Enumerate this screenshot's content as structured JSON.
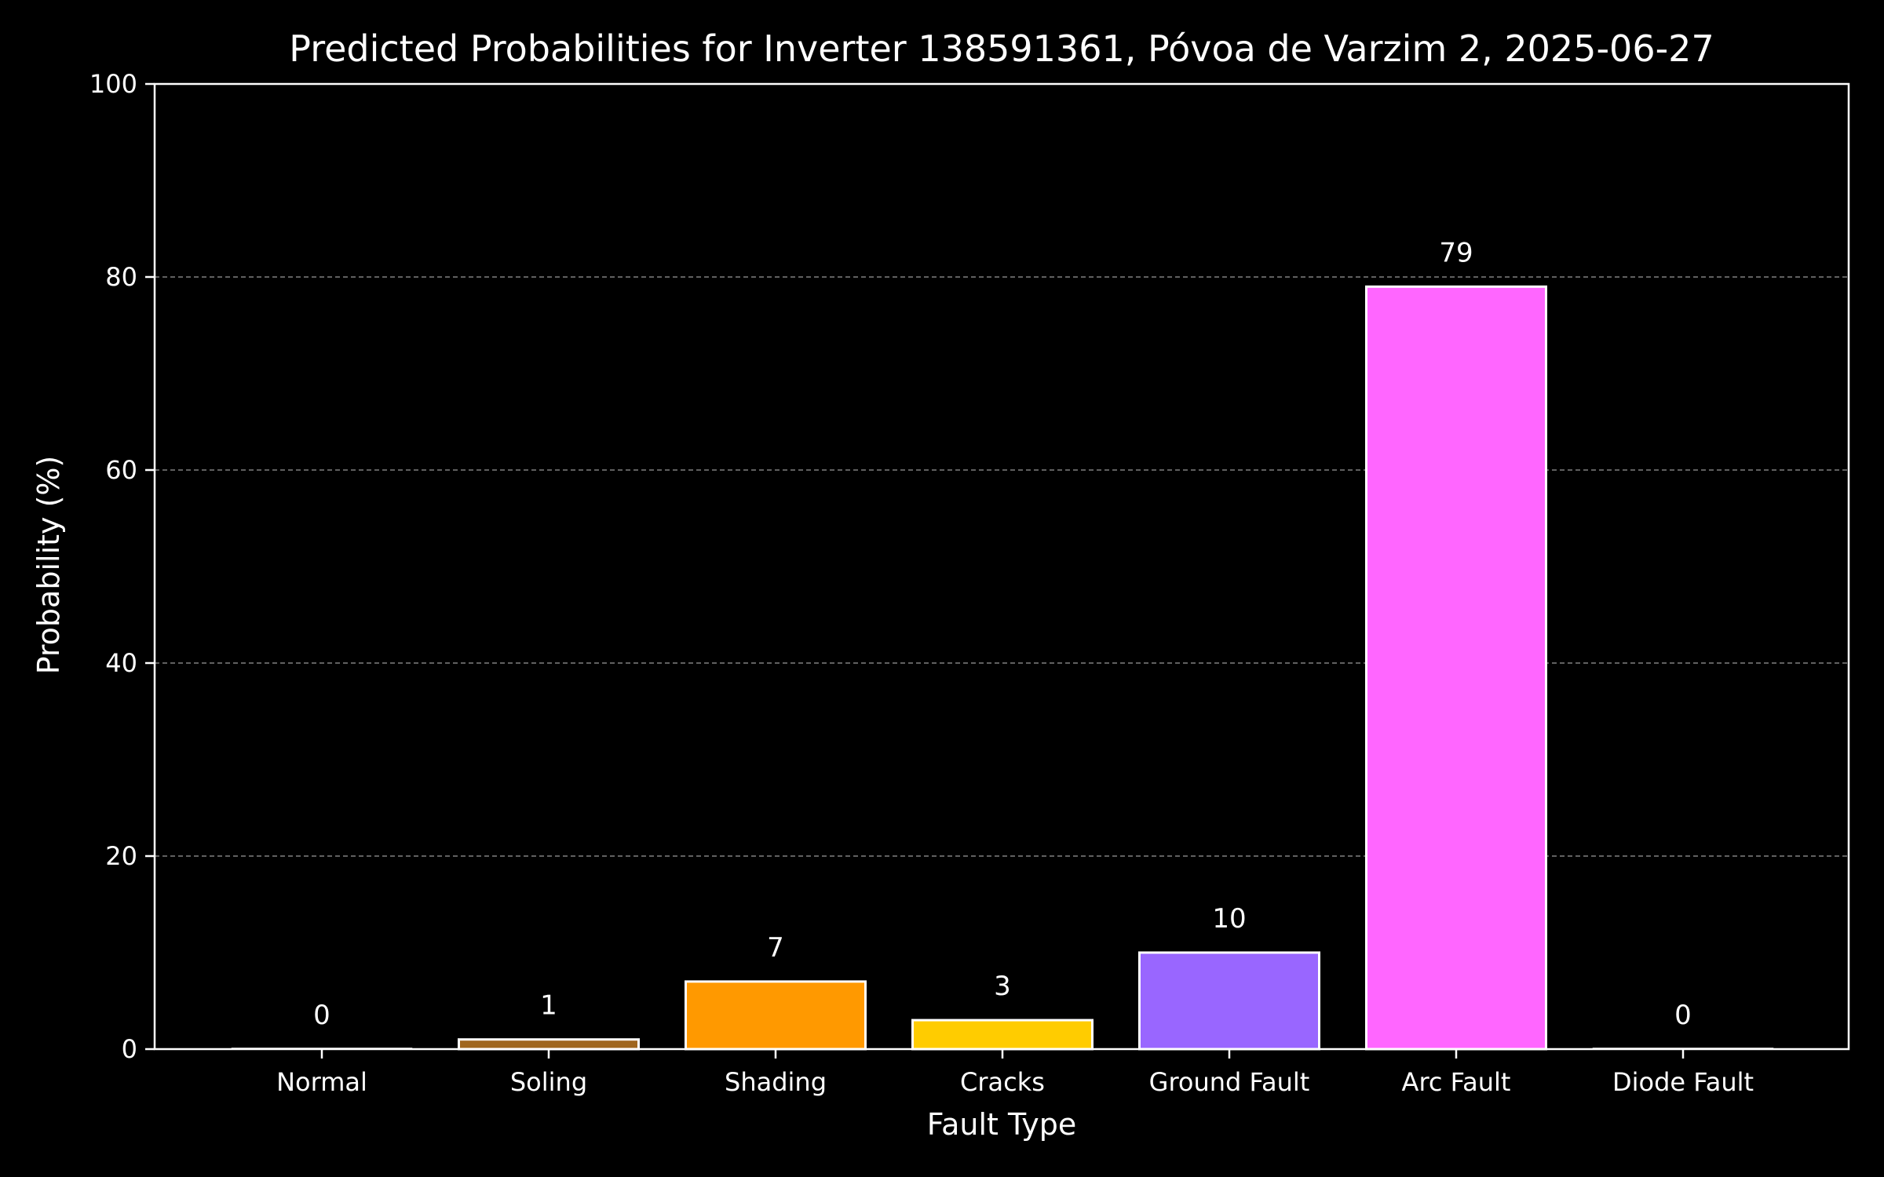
{
  "chart_data": {
    "type": "bar",
    "title": "Predicted Probabilities for Inverter 138591361, Póvoa de Varzim 2, 2025-06-27",
    "xlabel": "Fault Type",
    "ylabel": "Probability (%)",
    "categories": [
      "Normal",
      "Soling",
      "Shading",
      "Cracks",
      "Ground Fault",
      "Arc Fault",
      "Diode Fault"
    ],
    "values": [
      0,
      1,
      7,
      3,
      10,
      79,
      0
    ],
    "data_labels": [
      "0",
      "1",
      "7",
      "3",
      "10",
      "79",
      "0"
    ],
    "colors": [
      "#ffffff",
      "#a0661e",
      "#ff9900",
      "#ffcc00",
      "#9966ff",
      "#ff66ff",
      "#ffffff"
    ],
    "ylim": [
      0,
      100
    ],
    "yticks": [
      0,
      20,
      40,
      60,
      80,
      100
    ],
    "ytick_labels": [
      "0",
      "20",
      "40",
      "60",
      "80",
      "100"
    ],
    "grid": "y-dashed",
    "background": "#000000",
    "foreground": "#ffffff",
    "grid_color": "#808080"
  }
}
